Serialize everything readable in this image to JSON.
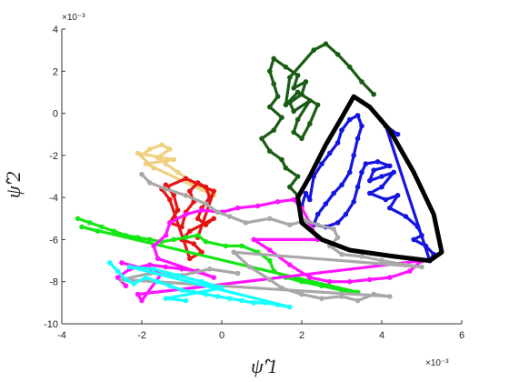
{
  "chart_data": {
    "type": "scatter",
    "title": "",
    "xlabel": "ψ̂′1",
    "ylabel": "ψ̂′2",
    "x_multiplier": "×10⁻³",
    "y_multiplier": "×10⁻³",
    "xlim": [
      -4,
      6
    ],
    "ylim": [
      -10,
      4
    ],
    "xticks": [
      "-4",
      "-2",
      "0",
      "2",
      "4",
      "6"
    ],
    "yticks": [
      "-10",
      "-8",
      "-6",
      "-4",
      "-2",
      "0",
      "2",
      "4"
    ],
    "grid": false,
    "legend": "none",
    "series": [
      {
        "color": "#1a5c14",
        "points": [
          [
            1.9,
            -3.9
          ],
          [
            1.7,
            -3.5
          ],
          [
            1.9,
            -3.0
          ],
          [
            1.6,
            -2.6
          ],
          [
            1.5,
            -2.2
          ],
          [
            1.2,
            -1.8
          ],
          [
            1.0,
            -1.2
          ],
          [
            1.3,
            -0.8
          ],
          [
            1.5,
            -0.2
          ],
          [
            1.2,
            0.3
          ],
          [
            1.4,
            0.8
          ],
          [
            1.3,
            1.4
          ],
          [
            1.2,
            2.0
          ],
          [
            1.3,
            2.6
          ],
          [
            1.6,
            2.2
          ],
          [
            1.9,
            1.8
          ],
          [
            1.8,
            1.2
          ],
          [
            2.1,
            1.5
          ],
          [
            2.0,
            0.9
          ],
          [
            1.7,
            0.5
          ],
          [
            1.8,
            0.1
          ],
          [
            2.2,
            0.6
          ],
          [
            1.9,
            -0.3
          ],
          [
            1.8,
            -0.9
          ],
          [
            2.0,
            -1.2
          ],
          [
            2.2,
            -0.5
          ],
          [
            2.4,
            0.4
          ],
          [
            1.9,
            1.0
          ],
          [
            1.6,
            0.4
          ],
          [
            1.7,
            1.7
          ],
          [
            2.3,
            3.0
          ],
          [
            2.6,
            3.3
          ],
          [
            2.9,
            2.8
          ],
          [
            3.2,
            2.2
          ],
          [
            3.5,
            1.5
          ],
          [
            3.8,
            0.9
          ]
        ]
      },
      {
        "color": "#1515e0",
        "points": [
          [
            2.0,
            -4.4
          ],
          [
            2.1,
            -3.8
          ],
          [
            2.2,
            -4.1
          ],
          [
            2.3,
            -3.0
          ],
          [
            2.5,
            -2.4
          ],
          [
            2.7,
            -1.9
          ],
          [
            2.9,
            -1.4
          ],
          [
            3.0,
            -0.8
          ],
          [
            3.2,
            -0.3
          ],
          [
            3.4,
            -0.1
          ],
          [
            3.5,
            -0.6
          ],
          [
            3.4,
            -1.2
          ],
          [
            3.3,
            -2.0
          ],
          [
            3.2,
            -2.8
          ],
          [
            3.0,
            -3.4
          ],
          [
            2.8,
            -3.8
          ],
          [
            2.6,
            -4.3
          ],
          [
            2.4,
            -4.8
          ],
          [
            2.3,
            -5.3
          ],
          [
            2.6,
            -5.4
          ],
          [
            2.9,
            -5.2
          ],
          [
            3.1,
            -4.8
          ],
          [
            3.3,
            -4.2
          ],
          [
            3.4,
            -3.5
          ],
          [
            3.5,
            -2.8
          ],
          [
            3.6,
            -2.4
          ],
          [
            3.9,
            -2.3
          ],
          [
            4.2,
            -2.5
          ],
          [
            3.8,
            -2.7
          ],
          [
            3.7,
            -3.2
          ],
          [
            4.0,
            -3.0
          ],
          [
            4.3,
            -2.8
          ],
          [
            4.0,
            -3.5
          ],
          [
            3.7,
            -3.8
          ],
          [
            4.1,
            -4.1
          ],
          [
            4.4,
            -3.9
          ],
          [
            4.2,
            -4.5
          ],
          [
            4.6,
            -4.9
          ],
          [
            4.9,
            -5.4
          ],
          [
            5.0,
            -5.8
          ],
          [
            4.8,
            -6.0
          ],
          [
            5.1,
            -6.3
          ],
          [
            5.3,
            -6.7
          ],
          [
            5.2,
            -7.0
          ],
          [
            4.1,
            -0.6
          ],
          [
            4.4,
            -1.0
          ]
        ]
      },
      {
        "color": "#f0d080",
        "points": [
          [
            -2.0,
            -2.0
          ],
          [
            -1.8,
            -1.7
          ],
          [
            -1.5,
            -1.5
          ],
          [
            -1.3,
            -1.7
          ],
          [
            -1.6,
            -2.1
          ],
          [
            -1.4,
            -2.4
          ],
          [
            -1.1,
            -2.8
          ],
          [
            -0.8,
            -3.2
          ],
          [
            -0.5,
            -3.5
          ],
          [
            -0.2,
            -3.9
          ],
          [
            -1.9,
            -2.4
          ],
          [
            -1.2,
            -2.2
          ],
          [
            -2.1,
            -1.9
          ],
          [
            -1.7,
            -2.6
          ]
        ]
      },
      {
        "color": "#e51414",
        "points": [
          [
            -1.4,
            -3.4
          ],
          [
            -1.2,
            -3.9
          ],
          [
            -1.1,
            -4.6
          ],
          [
            -1.3,
            -5.2
          ],
          [
            -1.0,
            -5.4
          ],
          [
            -0.9,
            -4.7
          ],
          [
            -0.7,
            -4.2
          ],
          [
            -0.8,
            -3.7
          ],
          [
            -0.6,
            -3.3
          ],
          [
            -0.4,
            -3.5
          ],
          [
            -0.3,
            -4.0
          ],
          [
            -0.5,
            -4.5
          ],
          [
            -0.6,
            -5.0
          ],
          [
            -0.4,
            -5.3
          ],
          [
            -0.2,
            -5.0
          ],
          [
            -0.8,
            -5.6
          ],
          [
            -1.0,
            -6.0
          ],
          [
            -0.7,
            -6.2
          ],
          [
            -0.5,
            -6.6
          ],
          [
            -0.8,
            -6.9
          ],
          [
            -1.3,
            -4.1
          ],
          [
            -1.5,
            -3.6
          ],
          [
            -0.9,
            -3.1
          ],
          [
            -0.2,
            -3.7
          ],
          [
            -0.6,
            -5.9
          ]
        ]
      },
      {
        "color": "#15e615",
        "points": [
          [
            -3.6,
            -5.0
          ],
          [
            -3.3,
            -5.2
          ],
          [
            -3.0,
            -5.4
          ],
          [
            -2.7,
            -5.6
          ],
          [
            -2.4,
            -5.8
          ],
          [
            -2.1,
            -5.9
          ],
          [
            -1.8,
            -6.0
          ],
          [
            -1.5,
            -6.1
          ],
          [
            -1.2,
            -6.0
          ],
          [
            -0.9,
            -5.9
          ],
          [
            -0.6,
            -5.8
          ],
          [
            -0.4,
            -6.1
          ],
          [
            0.1,
            -6.3
          ],
          [
            0.5,
            -6.3
          ],
          [
            0.9,
            -6.6
          ],
          [
            1.2,
            -7.0
          ],
          [
            1.3,
            -7.5
          ],
          [
            1.6,
            -7.8
          ],
          [
            2.0,
            -8.0
          ],
          [
            2.5,
            -8.2
          ],
          [
            3.0,
            -8.4
          ],
          [
            3.4,
            -8.5
          ],
          [
            -3.5,
            -5.4
          ],
          [
            -3.1,
            -5.6
          ]
        ]
      },
      {
        "color": "#ff14ff",
        "points": [
          [
            -2.4,
            -8.2
          ],
          [
            -2.6,
            -7.8
          ],
          [
            -2.3,
            -7.4
          ],
          [
            -1.8,
            -7.2
          ],
          [
            -1.4,
            -7.3
          ],
          [
            -1.0,
            -7.4
          ],
          [
            -0.6,
            -7.5
          ],
          [
            -0.2,
            -7.8
          ],
          [
            -1.6,
            -6.9
          ],
          [
            -1.7,
            -6.3
          ],
          [
            -1.4,
            -5.8
          ],
          [
            -1.3,
            -5.2
          ],
          [
            -0.9,
            -4.8
          ],
          [
            -0.5,
            -4.6
          ],
          [
            0.0,
            -4.7
          ],
          [
            0.4,
            -4.5
          ],
          [
            0.9,
            -4.4
          ],
          [
            1.4,
            -4.2
          ],
          [
            1.8,
            -4.1
          ],
          [
            2.0,
            -4.5
          ],
          [
            2.2,
            -5.2
          ],
          [
            2.4,
            -6.0
          ],
          [
            0.8,
            -6.0
          ],
          [
            1.2,
            -6.5
          ],
          [
            1.7,
            -7.2
          ],
          [
            2.2,
            -7.8
          ],
          [
            2.7,
            -8.0
          ],
          [
            3.2,
            -8.0
          ],
          [
            3.7,
            -7.9
          ],
          [
            4.2,
            -7.8
          ],
          [
            4.7,
            -7.5
          ],
          [
            5.0,
            -7.0
          ],
          [
            -2.1,
            -8.6
          ],
          [
            -2.0,
            -8.9
          ],
          [
            -1.5,
            -7.6
          ],
          [
            -2.5,
            -7.1
          ]
        ]
      },
      {
        "color": "#a8a8a8",
        "points": [
          [
            -2.0,
            -2.9
          ],
          [
            -1.8,
            -3.3
          ],
          [
            -1.4,
            -3.6
          ],
          [
            -0.9,
            -3.9
          ],
          [
            -0.4,
            -4.3
          ],
          [
            -0.1,
            -4.7
          ],
          [
            0.2,
            -4.9
          ],
          [
            0.6,
            -5.2
          ],
          [
            1.2,
            -5.0
          ],
          [
            1.7,
            -5.3
          ],
          [
            2.1,
            -5.1
          ],
          [
            2.4,
            -5.3
          ],
          [
            2.8,
            -5.5
          ],
          [
            2.9,
            -5.9
          ],
          [
            2.7,
            -6.3
          ],
          [
            3.0,
            -6.7
          ],
          [
            3.5,
            -6.8
          ],
          [
            4.0,
            -7.0
          ],
          [
            4.6,
            -7.2
          ],
          [
            5.0,
            -7.3
          ],
          [
            0.3,
            -6.6
          ],
          [
            0.7,
            -7.3
          ],
          [
            1.2,
            -7.9
          ],
          [
            1.5,
            -8.3
          ],
          [
            2.0,
            -8.6
          ],
          [
            2.5,
            -8.8
          ],
          [
            3.0,
            -8.7
          ],
          [
            3.4,
            -8.9
          ],
          [
            3.8,
            -8.6
          ],
          [
            4.2,
            -8.7
          ],
          [
            -2.5,
            -7.9
          ],
          [
            -1.8,
            -7.6
          ],
          [
            -1.0,
            -7.7
          ],
          [
            -0.3,
            -7.4
          ],
          [
            0.4,
            -7.6
          ]
        ]
      },
      {
        "color": "#14ffff",
        "points": [
          [
            -2.8,
            -7.1
          ],
          [
            -2.6,
            -7.5
          ],
          [
            -2.4,
            -7.9
          ],
          [
            -2.2,
            -8.1
          ],
          [
            -1.9,
            -7.8
          ],
          [
            -1.6,
            -8.0
          ],
          [
            -1.3,
            -8.2
          ],
          [
            -1.0,
            -8.4
          ],
          [
            -0.7,
            -8.5
          ],
          [
            -0.4,
            -8.6
          ],
          [
            -0.1,
            -8.7
          ],
          [
            0.2,
            -8.8
          ],
          [
            0.5,
            -8.9
          ],
          [
            0.8,
            -9.0
          ],
          [
            1.1,
            -9.0
          ],
          [
            1.4,
            -9.1
          ],
          [
            1.7,
            -9.2
          ],
          [
            -2.3,
            -7.3
          ],
          [
            -1.7,
            -7.4
          ],
          [
            -1.1,
            -7.7
          ],
          [
            -0.5,
            -8.0
          ],
          [
            0.0,
            -8.3
          ],
          [
            -1.4,
            -8.8
          ],
          [
            -0.9,
            -8.9
          ]
        ]
      }
    ]
  }
}
